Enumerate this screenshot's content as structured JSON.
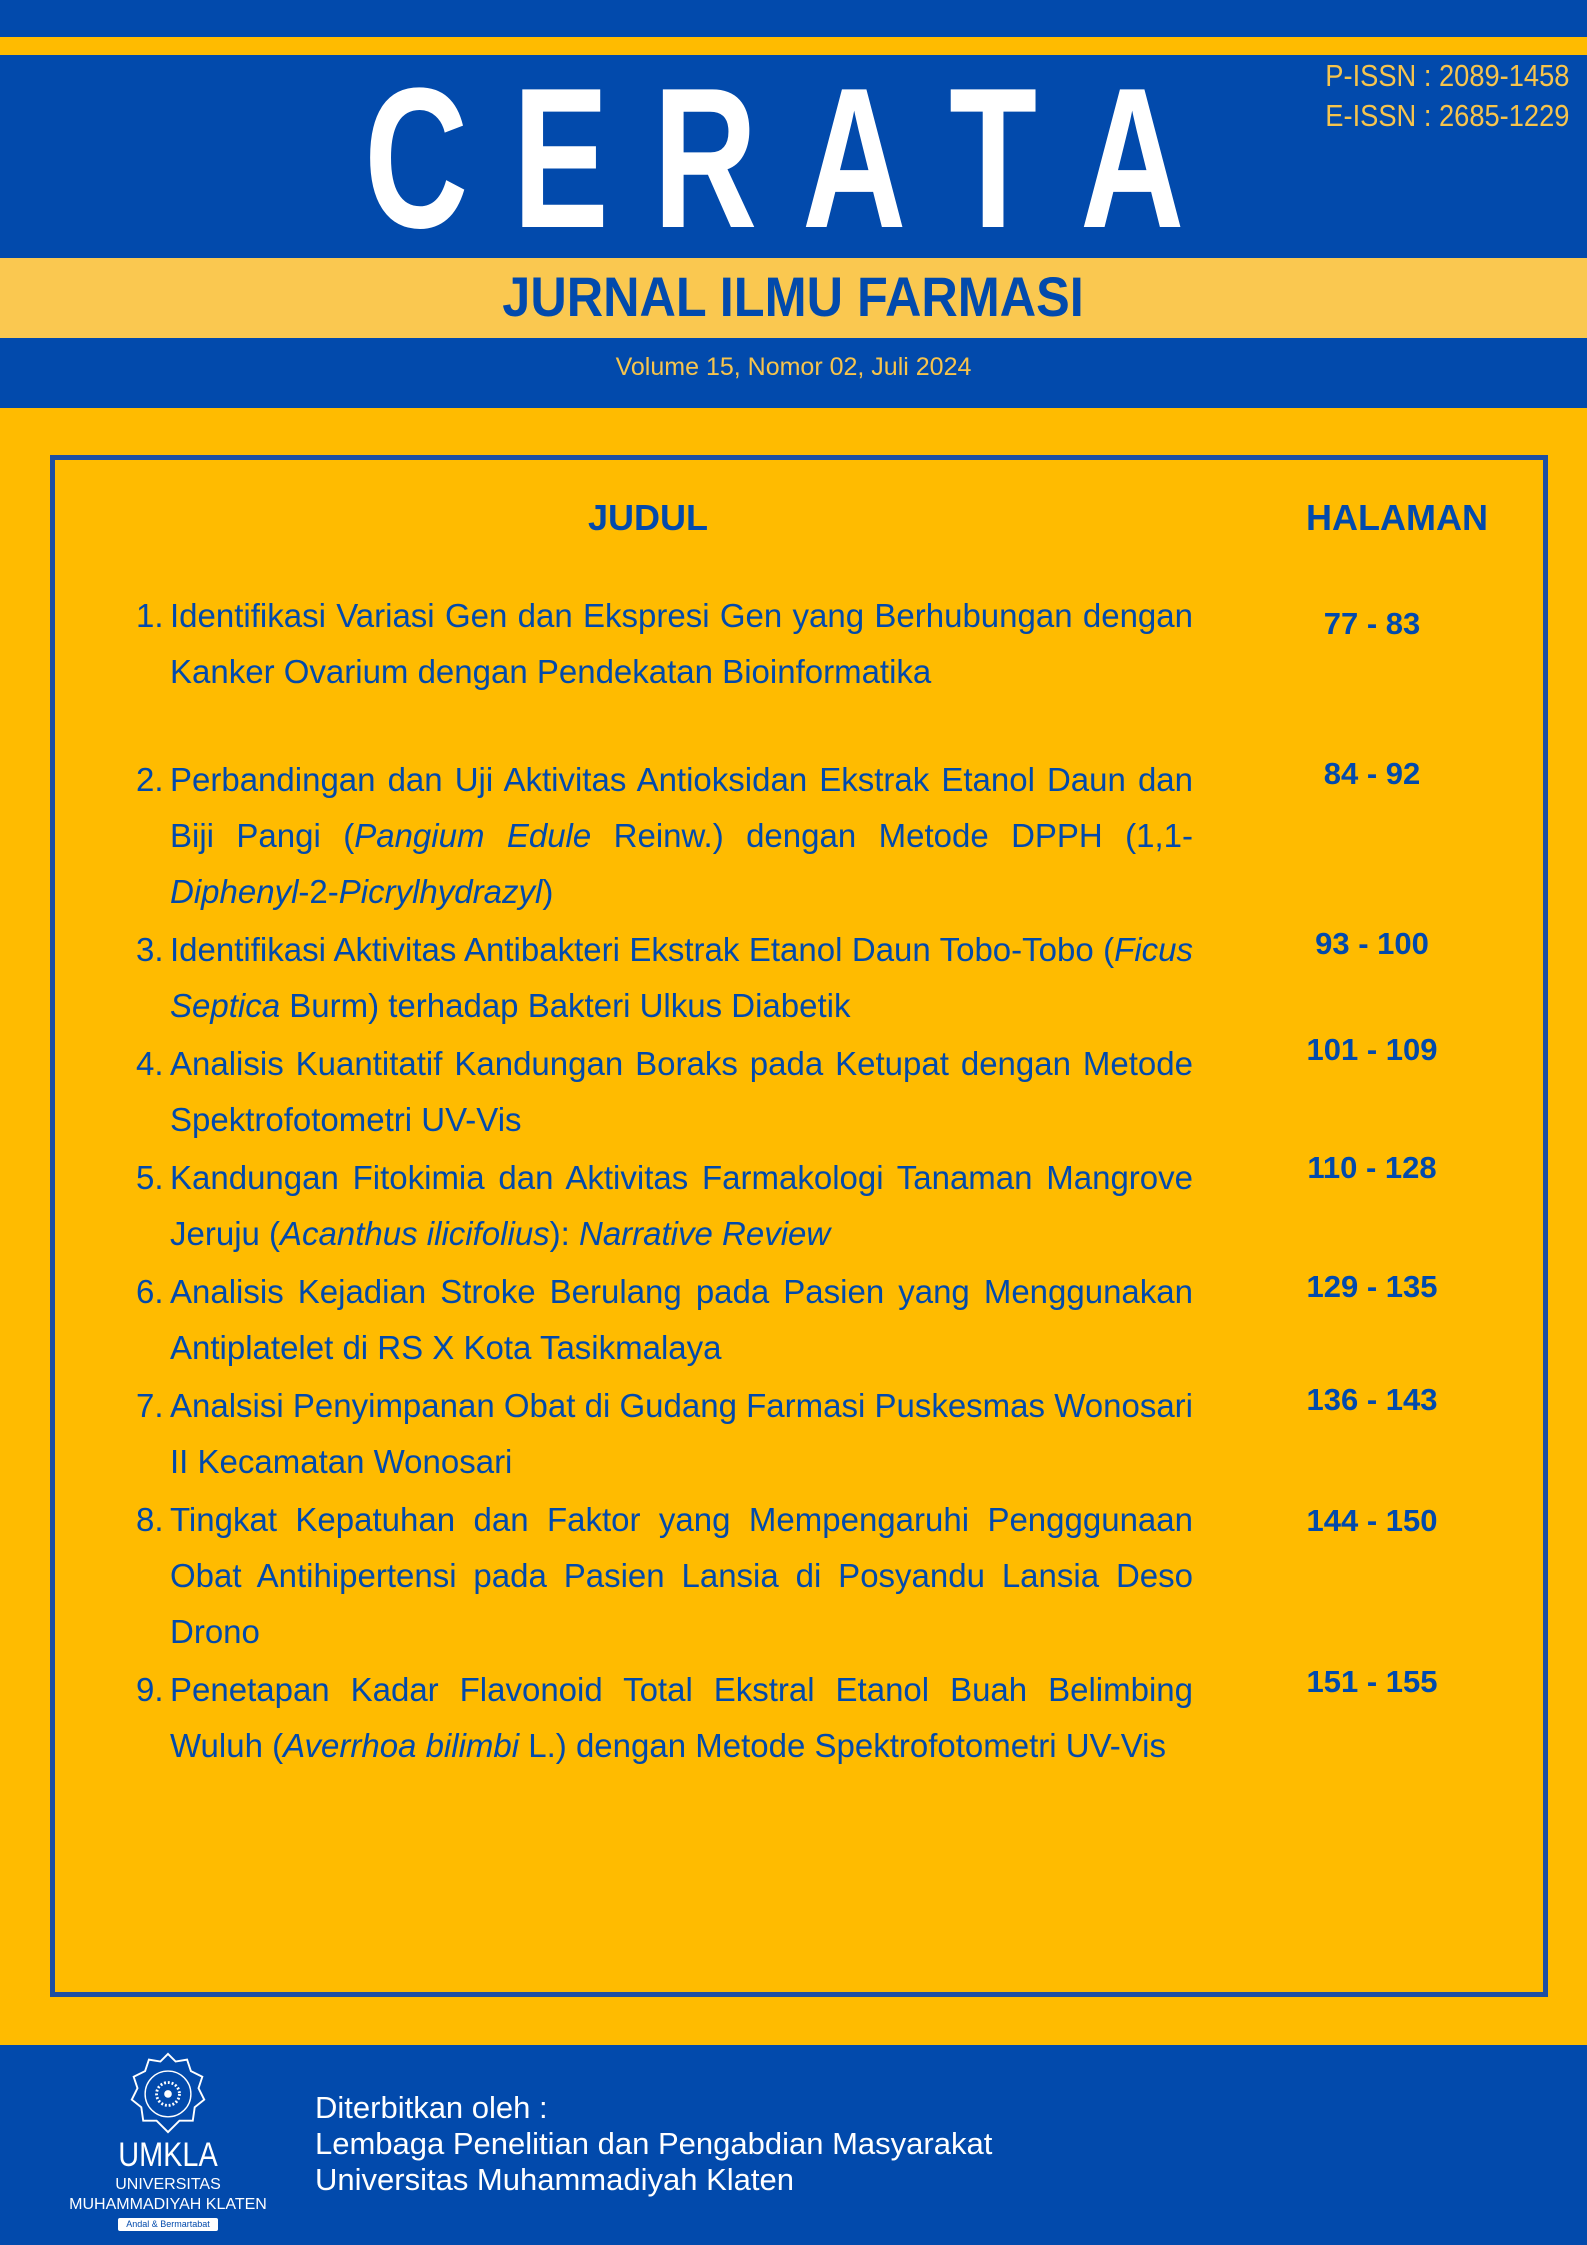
{
  "header": {
    "title_letters": [
      "C",
      "E",
      "R",
      "A",
      "T",
      "A"
    ],
    "p_issn": "P-ISSN : 2089-1458",
    "e_issn": "E-ISSN : 2685-1229",
    "subtitle": "JURNAL ILMU FARMASI",
    "volume": "Volume 15, Nomor 02, Juli 2024"
  },
  "toc": {
    "col_title": "JUDUL",
    "col_pages": "HALAMAN",
    "items": [
      {
        "num": "1.",
        "pages": "77 - 83",
        "title": [
          {
            "t": "Identifikasi Variasi Gen dan Ekspresi Gen yang Berhubungan dengan Kanker Ovarium dengan Pendekatan Bioinformatika"
          }
        ]
      },
      {
        "num": "2.",
        "pages": "84 - 92",
        "title": [
          {
            "t": "Perbandingan dan Uji Aktivitas Antioksidan Ekstrak Etanol Daun dan Biji Pangi ("
          },
          {
            "t": "Pangium Edule",
            "i": true
          },
          {
            "t": " Reinw.) dengan Metode DPPH (1,1-"
          },
          {
            "t": "Diphenyl",
            "i": true
          },
          {
            "t": "-2-"
          },
          {
            "t": "Picrylhydrazyl",
            "i": true
          },
          {
            "t": ")"
          }
        ]
      },
      {
        "num": "3.",
        "pages": "93 - 100",
        "title": [
          {
            "t": "Identifikasi Aktivitas Antibakteri Ekstrak Etanol Daun Tobo-Tobo ("
          },
          {
            "t": "Ficus Septica",
            "i": true
          },
          {
            "t": " Burm) terhadap Bakteri Ulkus Diabetik"
          }
        ]
      },
      {
        "num": "4.",
        "pages": "101 - 109",
        "title": [
          {
            "t": "Analisis Kuantitatif Kandungan Boraks pada Ketupat dengan Metode Spektrofotometri UV-Vis"
          }
        ]
      },
      {
        "num": "5.",
        "pages": "110 - 128",
        "title": [
          {
            "t": "Kandungan Fitokimia dan Aktivitas Farmakologi Tanaman Mangrove Jeruju ("
          },
          {
            "t": "Acanthus ilicifolius",
            "i": true
          },
          {
            "t": "): "
          },
          {
            "t": "Narrative Review",
            "i": true
          }
        ]
      },
      {
        "num": "6.",
        "pages": "129 - 135",
        "title": [
          {
            "t": "Analisis Kejadian Stroke Berulang pada Pasien yang Menggunakan Antiplatelet di RS X Kota Tasikmalaya"
          }
        ]
      },
      {
        "num": "7.",
        "pages": "136 - 143",
        "title": [
          {
            "t": "Analsisi Penyimpanan Obat di Gudang Farmasi Puskesmas Wonosari II Kecamatan Wonosari"
          }
        ]
      },
      {
        "num": "8.",
        "pages": "144 - 150",
        "title": [
          {
            "t": "Tingkat Kepatuhan dan Faktor yang Mempengaruhi Pengggunaan Obat Antihipertensi pada Pasien Lansia di Posyandu Lansia Deso Drono"
          }
        ]
      },
      {
        "num": "9.",
        "pages": "151 - 155",
        "title": [
          {
            "t": "Penetapan Kadar Flavonoid Total Ekstral Etanol Buah Belimbing Wuluh ("
          },
          {
            "t": "Averrhoa bilimbi",
            "i": true
          },
          {
            "t": " L.) dengan Metode Spektrofotometri UV-Vis"
          }
        ]
      }
    ]
  },
  "footer": {
    "logo_name": "UMKLA",
    "logo_line1": "UNIVERSITAS",
    "logo_line2": "MUHAMMADIYAH KLATEN",
    "logo_motto": "Andal & Bermartabat",
    "published_label": "Diterbitkan oleh :",
    "publisher_line1": "Lembaga Penelitian dan Pengabdian Masyarakat",
    "publisher_line2": "Universitas Muhammadiyah Klaten"
  },
  "colors": {
    "blue": "#024AAC",
    "yellow": "#FFBB00",
    "light_yellow": "#FAC850"
  }
}
